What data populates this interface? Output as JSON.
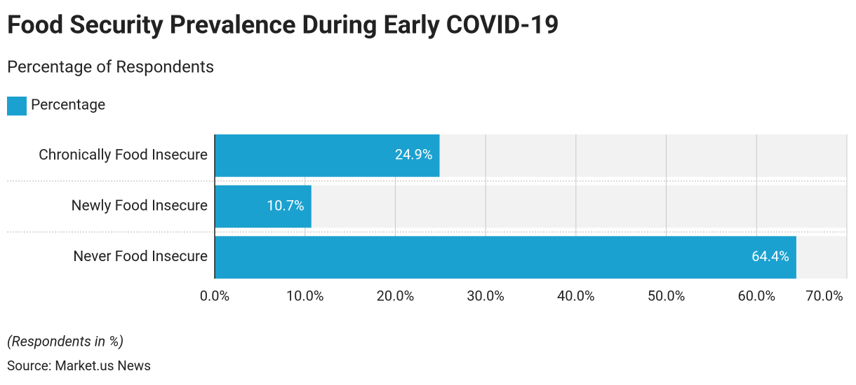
{
  "chart_data": {
    "type": "bar",
    "orientation": "horizontal",
    "title": "Food Security Prevalence During Early COVID-19",
    "subtitle": "Percentage of Respondents",
    "categories": [
      "Chronically Food Insecure",
      "Newly Food Insecure",
      "Never Food Insecure"
    ],
    "series": [
      {
        "name": "Percentage",
        "color": "#1ba1d0",
        "values": [
          24.9,
          10.7,
          64.4
        ],
        "value_labels": [
          "24.9%",
          "10.7%",
          "64.4%"
        ]
      }
    ],
    "xlim": [
      0,
      70
    ],
    "xticks": [
      {
        "value": 0,
        "label": "0.0%"
      },
      {
        "value": 10,
        "label": "10.0%"
      },
      {
        "value": 20,
        "label": "20.0%"
      },
      {
        "value": 30,
        "label": "30.0%"
      },
      {
        "value": 40,
        "label": "40.0%"
      },
      {
        "value": 50,
        "label": "50.0%"
      },
      {
        "value": 60,
        "label": "60.0%"
      },
      {
        "value": 70,
        "label": "70.0%"
      }
    ],
    "grid": true,
    "legend": "top-left",
    "note": "(Respondents in %)",
    "source": "Source: Market.us News"
  }
}
